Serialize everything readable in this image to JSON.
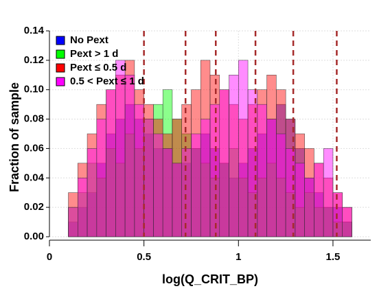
{
  "chart_data": {
    "type": "histogram",
    "ylabel": "Fraction of sample",
    "xlabel": "log(Q_CRIT_BP)",
    "bins": [
      0.1,
      0.15,
      0.2,
      0.25,
      0.3,
      0.35,
      0.4,
      0.45,
      0.5,
      0.55,
      0.6,
      0.65,
      0.7,
      0.75,
      0.8,
      0.85,
      0.9,
      0.95,
      1.0,
      1.05,
      1.1,
      1.15,
      1.2,
      1.25,
      1.3,
      1.35,
      1.4,
      1.45,
      1.5,
      1.55,
      1.6
    ],
    "series": [
      {
        "name": "No Pext",
        "color": "#0000ff",
        "values": [
          0.01,
          0.02,
          0.03,
          0.05,
          0.07,
          0.08,
          0.09,
          0.08,
          0.07,
          0.06,
          0.06,
          0.05,
          0.05,
          0.06,
          0.07,
          0.06,
          0.05,
          0.04,
          0.05,
          0.06,
          0.07,
          0.08,
          0.09,
          0.08,
          0.06,
          0.04,
          0.03,
          0.02,
          0.02,
          0.01
        ]
      },
      {
        "name": "Pext > 1 d",
        "color": "#00ff00",
        "values": [
          0.02,
          0.03,
          0.05,
          0.04,
          0.06,
          0.05,
          0.07,
          0.06,
          0.08,
          0.09,
          0.1,
          0.08,
          0.07,
          0.06,
          0.05,
          0.04,
          0.05,
          0.06,
          0.04,
          0.03,
          0.04,
          0.05,
          0.04,
          0.03,
          0.02,
          0.03,
          0.02,
          0.02,
          0.01,
          0.01
        ]
      },
      {
        "name": "Pext ≤ 0.5 d",
        "color": "#ff0000",
        "values": [
          0.03,
          0.05,
          0.07,
          0.09,
          0.1,
          0.11,
          0.12,
          0.1,
          0.09,
          0.08,
          0.07,
          0.08,
          0.09,
          0.1,
          0.12,
          0.11,
          0.1,
          0.09,
          0.08,
          0.09,
          0.1,
          0.11,
          0.1,
          0.08,
          0.07,
          0.06,
          0.05,
          0.04,
          0.03,
          0.02
        ]
      },
      {
        "name": "0.5 < Pext ≤ 1 d",
        "color": "#ff00ff",
        "values": [
          0.02,
          0.04,
          0.06,
          0.08,
          0.1,
          0.12,
          0.11,
          0.09,
          0.08,
          0.07,
          0.06,
          0.05,
          0.06,
          0.07,
          0.08,
          0.09,
          0.1,
          0.11,
          0.12,
          0.1,
          0.09,
          0.08,
          0.07,
          0.06,
          0.05,
          0.04,
          0.05,
          0.06,
          0.03,
          0.02
        ]
      }
    ],
    "vlines": [
      0.5,
      0.72,
      0.88,
      1.09,
      1.29,
      1.52
    ],
    "vline_color": "#a52a2a",
    "xlim": [
      0,
      1.7
    ],
    "xticks": [
      0,
      0.5,
      1,
      1.5
    ],
    "ylim": [
      0,
      0.14
    ],
    "yticks": [
      {
        "value": 0,
        "label": "0.00"
      },
      {
        "value": 0.02,
        "label": "0.02"
      },
      {
        "value": 0.04,
        "label": "0.04"
      },
      {
        "value": 0.06,
        "label": "0.06"
      },
      {
        "value": 0.08,
        "label": "0.08"
      },
      {
        "value": 0.1,
        "label": "0.10"
      },
      {
        "value": 0.12,
        "label": "0.12"
      },
      {
        "value": 0.14,
        "label": "0.14"
      }
    ],
    "grid": true
  }
}
